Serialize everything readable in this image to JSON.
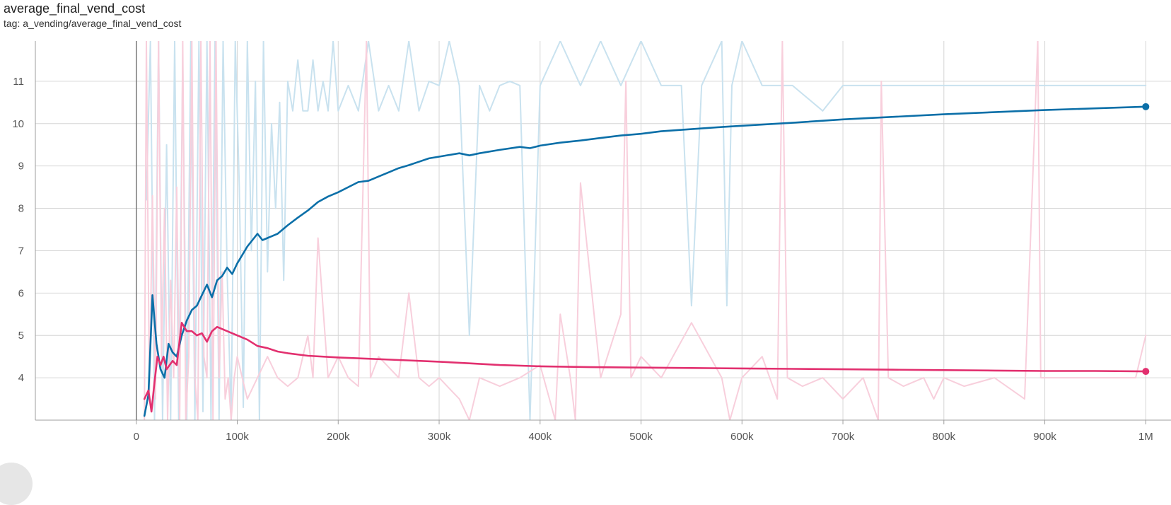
{
  "header": {
    "title": "average_final_vend_cost",
    "tag": "tag: a_vending/average_final_vend_cost"
  },
  "chart_data": {
    "type": "line",
    "title": "average_final_vend_cost",
    "subtitle": "tag: a_vending/average_final_vend_cost",
    "xlabel": "",
    "ylabel": "",
    "xlim": [
      -100000,
      1025000
    ],
    "ylim": [
      3.0,
      11.95
    ],
    "x_ticks": [
      0,
      100000,
      200000,
      300000,
      400000,
      500000,
      600000,
      700000,
      800000,
      900000,
      1000000
    ],
    "x_tick_labels": [
      "0",
      "100k",
      "200k",
      "300k",
      "400k",
      "500k",
      "600k",
      "700k",
      "800k",
      "900k",
      "1M"
    ],
    "y_ticks": [
      4,
      5,
      6,
      7,
      8,
      9,
      10,
      11
    ],
    "y_tick_labels": [
      "4",
      "5",
      "6",
      "7",
      "8",
      "9",
      "10",
      "11"
    ],
    "grid": true,
    "colors": {
      "blue_smoothed": "#0b6fa8",
      "blue_raw": "#c9e2ef",
      "pink_smoothed": "#e2306f",
      "pink_raw": "#f8cfdc",
      "grid": "#d6d6d6",
      "axis": "#9e9e9e"
    },
    "series": [
      {
        "color": "#0b6fa8",
        "style": "smoothed",
        "end_marker": true,
        "x": [
          8000,
          12000,
          16000,
          20000,
          24000,
          28000,
          32000,
          36000,
          40000,
          45000,
          50000,
          55000,
          60000,
          65000,
          70000,
          75000,
          80000,
          85000,
          90000,
          95000,
          100000,
          110000,
          120000,
          125000,
          130000,
          140000,
          150000,
          160000,
          170000,
          180000,
          190000,
          200000,
          210000,
          220000,
          230000,
          240000,
          250000,
          260000,
          270000,
          280000,
          290000,
          300000,
          320000,
          330000,
          340000,
          360000,
          380000,
          390000,
          400000,
          420000,
          440000,
          460000,
          480000,
          500000,
          520000,
          550000,
          580000,
          600000,
          650000,
          700000,
          750000,
          800000,
          850000,
          900000,
          950000,
          1000000
        ],
        "y": [
          3.1,
          3.6,
          5.95,
          4.8,
          4.2,
          4.0,
          4.8,
          4.6,
          4.5,
          5.0,
          5.35,
          5.6,
          5.7,
          5.95,
          6.2,
          5.9,
          6.3,
          6.4,
          6.6,
          6.45,
          6.7,
          7.1,
          7.4,
          7.25,
          7.3,
          7.4,
          7.6,
          7.78,
          7.95,
          8.15,
          8.28,
          8.38,
          8.5,
          8.62,
          8.65,
          8.75,
          8.85,
          8.95,
          9.02,
          9.1,
          9.18,
          9.22,
          9.3,
          9.25,
          9.3,
          9.38,
          9.45,
          9.42,
          9.48,
          9.55,
          9.6,
          9.66,
          9.72,
          9.76,
          9.82,
          9.87,
          9.92,
          9.95,
          10.02,
          10.1,
          10.16,
          10.22,
          10.27,
          10.32,
          10.36,
          10.4
        ]
      },
      {
        "color": "#e2306f",
        "style": "smoothed",
        "end_marker": true,
        "x": [
          8000,
          12000,
          15000,
          18000,
          21000,
          24000,
          27000,
          30000,
          33000,
          36000,
          40000,
          45000,
          50000,
          55000,
          60000,
          65000,
          70000,
          75000,
          80000,
          85000,
          90000,
          100000,
          110000,
          120000,
          130000,
          140000,
          150000,
          170000,
          200000,
          230000,
          260000,
          300000,
          330000,
          360000,
          400000,
          450000,
          500000,
          550000,
          600000,
          650000,
          700000,
          750000,
          800000,
          850000,
          900000,
          950000,
          1000000
        ],
        "y": [
          3.5,
          3.7,
          3.2,
          3.9,
          4.5,
          4.3,
          4.5,
          4.2,
          4.3,
          4.4,
          4.3,
          5.3,
          5.1,
          5.1,
          5.0,
          5.05,
          4.85,
          5.1,
          5.2,
          5.15,
          5.1,
          5.0,
          4.9,
          4.75,
          4.7,
          4.62,
          4.58,
          4.52,
          4.48,
          4.45,
          4.42,
          4.38,
          4.34,
          4.3,
          4.27,
          4.25,
          4.24,
          4.23,
          4.22,
          4.21,
          4.2,
          4.19,
          4.18,
          4.17,
          4.16,
          4.16,
          4.15
        ]
      },
      {
        "color": "#c9e2ef",
        "style": "raw",
        "end_marker": false,
        "x": [
          10000,
          14000,
          18000,
          22000,
          26000,
          30000,
          34000,
          38000,
          42000,
          46000,
          50000,
          54000,
          58000,
          62000,
          66000,
          70000,
          74000,
          78000,
          82000,
          86000,
          90000,
          94000,
          98000,
          102000,
          106000,
          110000,
          114000,
          118000,
          122000,
          126000,
          130000,
          134000,
          138000,
          142000,
          146000,
          150000,
          155000,
          160000,
          165000,
          170000,
          175000,
          180000,
          185000,
          190000,
          195000,
          200000,
          210000,
          220000,
          230000,
          240000,
          250000,
          260000,
          270000,
          280000,
          290000,
          300000,
          310000,
          320000,
          330000,
          340000,
          350000,
          360000,
          370000,
          380000,
          390000,
          400000,
          420000,
          440000,
          460000,
          480000,
          500000,
          520000,
          540000,
          550000,
          560000,
          580000,
          585000,
          590000,
          600000,
          620000,
          650000,
          680000,
          700000,
          750000,
          800000,
          850000,
          900000,
          950000,
          1000000
        ],
        "y": [
          8.2,
          11.95,
          3.0,
          11.95,
          3.0,
          9.5,
          3.0,
          11.95,
          3.0,
          11.5,
          3.0,
          11.95,
          3.0,
          11.95,
          3.2,
          11.95,
          3.0,
          11.95,
          3.0,
          11.95,
          6.5,
          3.0,
          11.95,
          8.5,
          3.3,
          11.95,
          7.0,
          11.0,
          3.0,
          11.95,
          6.5,
          10.0,
          8.0,
          10.5,
          6.3,
          11.0,
          10.3,
          11.5,
          10.3,
          10.3,
          11.5,
          10.3,
          11.0,
          10.3,
          11.95,
          10.3,
          10.9,
          10.3,
          11.95,
          10.3,
          10.9,
          10.3,
          11.95,
          10.3,
          11.0,
          10.9,
          11.95,
          10.9,
          5.0,
          10.9,
          10.3,
          10.9,
          11.0,
          10.9,
          3.0,
          10.9,
          11.95,
          10.9,
          11.95,
          10.9,
          11.95,
          10.9,
          10.9,
          5.7,
          10.9,
          11.95,
          5.7,
          10.9,
          11.95,
          10.9,
          10.9,
          10.3,
          10.9,
          10.9,
          10.9,
          10.9,
          10.9,
          10.9,
          10.9
        ]
      },
      {
        "color": "#f8cfdc",
        "style": "raw",
        "end_marker": false,
        "x": [
          8000,
          10000,
          13000,
          16000,
          19000,
          22000,
          25000,
          28000,
          31000,
          34000,
          37000,
          40000,
          43000,
          46000,
          49000,
          52000,
          55000,
          58000,
          61000,
          64000,
          67000,
          70000,
          73000,
          76000,
          79000,
          82000,
          85000,
          88000,
          91000,
          94000,
          97000,
          100000,
          105000,
          110000,
          120000,
          130000,
          140000,
          150000,
          160000,
          170000,
          175000,
          180000,
          190000,
          200000,
          210000,
          220000,
          228000,
          232000,
          240000,
          260000,
          270000,
          280000,
          290000,
          300000,
          320000,
          330000,
          340000,
          360000,
          380000,
          400000,
          415000,
          420000,
          430000,
          435000,
          440000,
          460000,
          480000,
          485000,
          490000,
          500000,
          520000,
          550000,
          580000,
          588000,
          600000,
          620000,
          635000,
          640000,
          645000,
          660000,
          680000,
          700000,
          720000,
          735000,
          738000,
          745000,
          760000,
          780000,
          790000,
          800000,
          820000,
          850000,
          880000,
          893000,
          896000,
          900000,
          950000,
          990000,
          1000000
        ],
        "y": [
          3.0,
          11.95,
          3.5,
          8.3,
          3.5,
          11.95,
          4.5,
          8.0,
          3.0,
          6.3,
          4.0,
          8.5,
          3.0,
          11.95,
          3.0,
          4.5,
          11.95,
          4.0,
          3.0,
          11.95,
          4.5,
          4.0,
          11.95,
          3.0,
          11.95,
          4.0,
          6.5,
          3.5,
          4.0,
          3.0,
          4.0,
          4.5,
          4.0,
          3.5,
          4.0,
          4.5,
          4.0,
          3.8,
          4.0,
          5.0,
          4.0,
          7.3,
          4.0,
          4.5,
          4.0,
          3.8,
          11.95,
          4.0,
          4.5,
          4.0,
          6.0,
          4.0,
          3.8,
          4.0,
          3.5,
          3.0,
          4.0,
          3.8,
          4.0,
          4.3,
          3.0,
          5.5,
          4.0,
          3.0,
          8.6,
          4.0,
          5.5,
          11.0,
          4.0,
          4.5,
          4.0,
          5.3,
          4.0,
          3.0,
          4.0,
          4.5,
          3.5,
          11.95,
          4.0,
          3.8,
          4.0,
          3.5,
          4.0,
          3.0,
          11.0,
          4.0,
          3.8,
          4.0,
          3.5,
          4.0,
          3.8,
          4.0,
          3.5,
          11.95,
          4.0,
          4.0,
          4.0,
          4.0,
          5.0
        ]
      }
    ]
  }
}
